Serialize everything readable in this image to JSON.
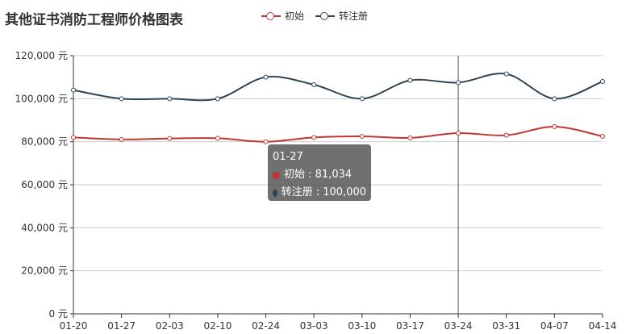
{
  "chart_data": {
    "type": "line",
    "title": "其他证书消防工程师价格图表",
    "categories": [
      "01-20",
      "01-27",
      "02-03",
      "02-10",
      "02-24",
      "03-03",
      "03-10",
      "03-17",
      "03-24",
      "03-31",
      "04-07",
      "04-14"
    ],
    "series": [
      {
        "name": "初始",
        "color": "#c23531",
        "values": [
          82000,
          81034,
          81500,
          81600,
          80000,
          82000,
          82500,
          81800,
          84000,
          83000,
          87000,
          82500
        ]
      },
      {
        "name": "转注册",
        "color": "#2f4554",
        "values": [
          104000,
          100000,
          100000,
          100000,
          110000,
          106500,
          100000,
          108500,
          107500,
          111500,
          100000,
          108000
        ]
      }
    ],
    "y_ticks": [
      "0 元",
      "20,000 元",
      "40,000 元",
      "60,000 元",
      "80,000 元",
      "100,000 元",
      "120,000 元"
    ],
    "ylim": [
      0,
      120000
    ],
    "grid": "horizontal",
    "legend_position": "top",
    "pointer_category": "03-24",
    "tooltip": {
      "title": "01-27",
      "rows": [
        {
          "label": "初始 : 81,034",
          "color": "#c23531"
        },
        {
          "label": "转注册 : 100,000",
          "color": "#2f4554"
        }
      ]
    }
  }
}
